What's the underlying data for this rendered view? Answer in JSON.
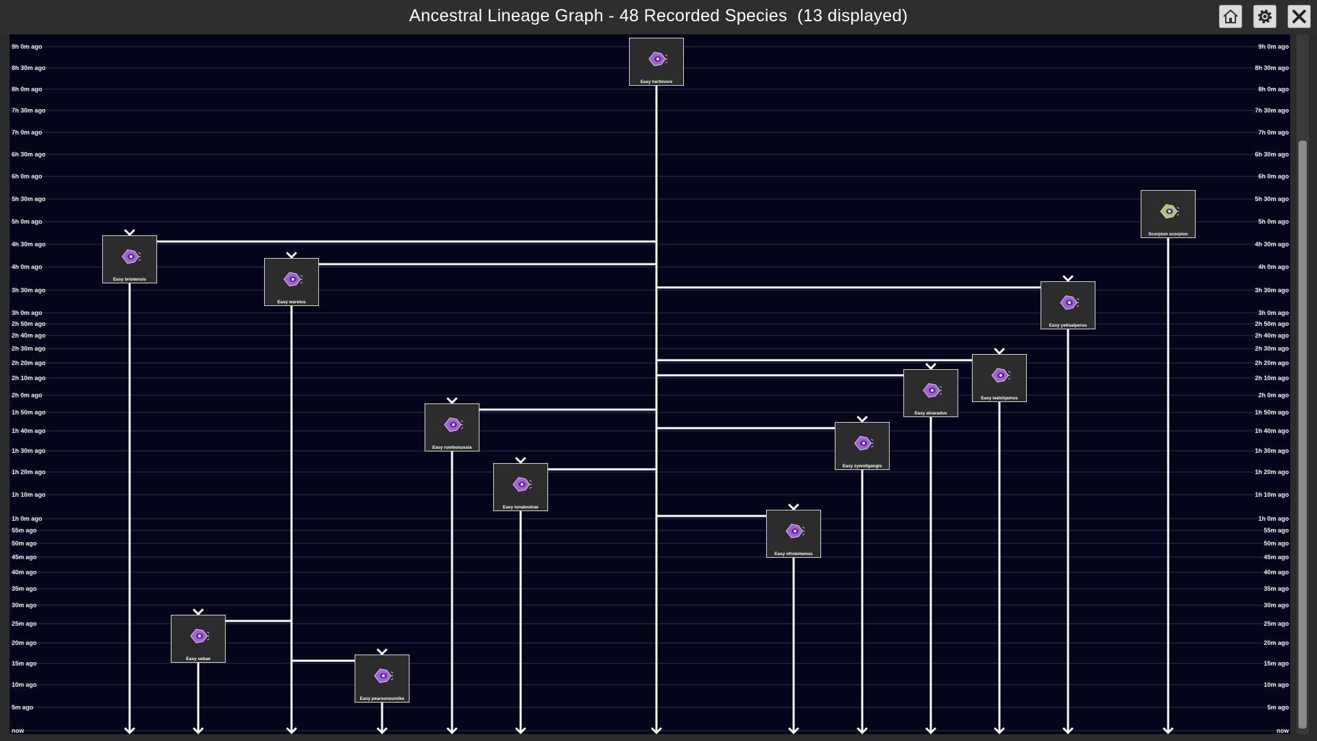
{
  "window": {
    "title": "Ancestral Lineage Graph - 48 Recorded Species  (13 displayed)",
    "buttons": [
      {
        "name": "home-button",
        "icon": "house-icon"
      },
      {
        "name": "settings-button",
        "icon": "gear-icon"
      },
      {
        "name": "close-button",
        "icon": "close-icon"
      }
    ]
  },
  "axis": {
    "ticks": [
      {
        "label": "9h 0m ago",
        "minutes": 540
      },
      {
        "label": "8h 30m ago",
        "minutes": 510
      },
      {
        "label": "8h 0m ago",
        "minutes": 480
      },
      {
        "label": "7h 30m ago",
        "minutes": 450
      },
      {
        "label": "7h 0m ago",
        "minutes": 420
      },
      {
        "label": "6h 30m ago",
        "minutes": 390
      },
      {
        "label": "6h 0m ago",
        "minutes": 360
      },
      {
        "label": "5h 30m ago",
        "minutes": 330
      },
      {
        "label": "5h 0m ago",
        "minutes": 300
      },
      {
        "label": "4h 30m ago",
        "minutes": 270
      },
      {
        "label": "4h 0m ago",
        "minutes": 240
      },
      {
        "label": "3h 30m ago",
        "minutes": 210
      },
      {
        "label": "3h 0m ago",
        "minutes": 180
      },
      {
        "label": "2h 50m ago",
        "minutes": 170
      },
      {
        "label": "2h 40m ago",
        "minutes": 160
      },
      {
        "label": "2h 30m ago",
        "minutes": 150
      },
      {
        "label": "2h 20m ago",
        "minutes": 140
      },
      {
        "label": "2h 10m ago",
        "minutes": 130
      },
      {
        "label": "2h 0m ago",
        "minutes": 120
      },
      {
        "label": "1h 50m ago",
        "minutes": 110
      },
      {
        "label": "1h 40m ago",
        "minutes": 100
      },
      {
        "label": "1h 30m ago",
        "minutes": 90
      },
      {
        "label": "1h 20m ago",
        "minutes": 80
      },
      {
        "label": "1h 10m ago",
        "minutes": 70
      },
      {
        "label": "1h 0m ago",
        "minutes": 60
      },
      {
        "label": "55m ago",
        "minutes": 55
      },
      {
        "label": "50m ago",
        "minutes": 50
      },
      {
        "label": "45m ago",
        "minutes": 45
      },
      {
        "label": "40m ago",
        "minutes": 40
      },
      {
        "label": "35m ago",
        "minutes": 35
      },
      {
        "label": "30m ago",
        "minutes": 30
      },
      {
        "label": "25m ago",
        "minutes": 25
      },
      {
        "label": "20m ago",
        "minutes": 20
      },
      {
        "label": "15m ago",
        "minutes": 15
      },
      {
        "label": "10m ago",
        "minutes": 10
      },
      {
        "label": "5m ago",
        "minutes": 5
      },
      {
        "label": "now",
        "minutes": 0
      }
    ]
  },
  "species": [
    {
      "id": "herb",
      "name": "Easy herbivore",
      "parent": null,
      "appeared_minutes_ago": 540,
      "icon": "purple-cell-icon"
    },
    {
      "id": "brio",
      "name": "Easy briotensis",
      "parent": "herb",
      "appeared_minutes_ago": 270,
      "icon": "purple-cell-icon"
    },
    {
      "id": "ware",
      "name": "Easy wareius",
      "parent": "herb",
      "appeared_minutes_ago": 240,
      "icon": "purple-cell-icon"
    },
    {
      "id": "yeti",
      "name": "Easy yetisalperus",
      "parent": "herb",
      "appeared_minutes_ago": 210,
      "icon": "purple-cell-icon"
    },
    {
      "id": "walsh",
      "name": "Easy walshjamus",
      "parent": "herb",
      "appeared_minutes_ago": 140,
      "icon": "purple-cell-icon"
    },
    {
      "id": "alvar",
      "name": "Easy alvaradus",
      "parent": "herb",
      "appeared_minutes_ago": 130,
      "icon": "purple-cell-icon"
    },
    {
      "id": "rumb",
      "name": "Easy rumboxussia",
      "parent": "herb",
      "appeared_minutes_ago": 110,
      "icon": "purple-cell-icon"
    },
    {
      "id": "zywo",
      "name": "Easy zywollgangis",
      "parent": "herb",
      "appeared_minutes_ago": 100,
      "icon": "purple-cell-icon"
    },
    {
      "id": "luna",
      "name": "Easy lunaloutrae",
      "parent": "herb",
      "appeared_minutes_ago": 80,
      "icon": "purple-cell-icon"
    },
    {
      "id": "ofro",
      "name": "Easy ofrowmenus",
      "parent": "herb",
      "appeared_minutes_ago": 60,
      "icon": "purple-cell-icon"
    },
    {
      "id": "seba",
      "name": "Easy sebae",
      "parent": "ware",
      "appeared_minutes_ago": 25,
      "icon": "purple-cell-icon"
    },
    {
      "id": "pear",
      "name": "Easy pearsonsumike",
      "parent": "ware",
      "appeared_minutes_ago": 15,
      "icon": "purple-cell-icon"
    },
    {
      "id": "scor",
      "name": "Scorpion scorpion",
      "parent": null,
      "appeared_minutes_ago": 330,
      "icon": "green-cell-icon"
    }
  ],
  "colors": {
    "background": "#04041a",
    "gridline": "#2c3550",
    "lineage_line": "#ffffff",
    "card_fill": "#2c2c2c",
    "purple_cell": "#a060d8",
    "green_cell": "#a8c870"
  }
}
